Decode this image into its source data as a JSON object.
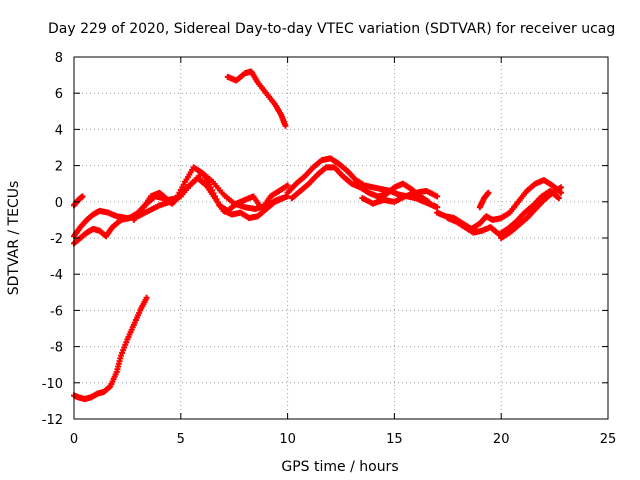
{
  "chart_data": {
    "type": "scatter",
    "title": "Day 229 of 2020, Sidereal Day-to-day VTEC variation (SDTVAR) for receiver ucag",
    "xlabel": "GPS time / hours",
    "ylabel": "SDTVAR / TECUs",
    "xlim": [
      0,
      25
    ],
    "ylim": [
      -12,
      8
    ],
    "x_ticks": [
      0,
      5,
      10,
      15,
      20,
      25
    ],
    "y_ticks": [
      -12,
      -10,
      -8,
      -6,
      -4,
      -2,
      0,
      2,
      4,
      6,
      8
    ],
    "grid": true,
    "legend": "none",
    "marker": "plus",
    "color": "#ff0000",
    "series": [
      {
        "name": "s1",
        "x": [
          0.0,
          0.2,
          0.5,
          0.8,
          1.1,
          1.4,
          1.7,
          2.0,
          2.2,
          2.5,
          2.8,
          3.1,
          3.4
        ],
        "y": [
          -10.7,
          -10.8,
          -10.9,
          -10.8,
          -10.6,
          -10.5,
          -10.2,
          -9.4,
          -8.5,
          -7.6,
          -6.8,
          -6.0,
          -5.3
        ]
      },
      {
        "name": "s2",
        "x": [
          7.2,
          7.6,
          8.0,
          8.3,
          8.6,
          9.0,
          9.4,
          9.7,
          9.9
        ],
        "y": [
          6.9,
          6.7,
          7.1,
          7.2,
          6.6,
          6.0,
          5.4,
          4.8,
          4.2
        ]
      },
      {
        "name": "s3",
        "x": [
          0.0,
          0.2,
          0.4
        ],
        "y": [
          -0.2,
          0.1,
          0.3
        ]
      },
      {
        "name": "s4",
        "x": [
          0.0,
          0.3,
          0.6,
          0.9,
          1.2,
          1.6,
          2.0,
          2.5,
          3.0,
          3.5,
          4.0,
          4.5,
          5.0,
          5.5,
          6.0,
          6.5,
          7.0,
          7.5,
          8.0,
          8.5,
          9.0,
          9.5,
          10.0
        ],
        "y": [
          -1.9,
          -1.4,
          -1.0,
          -0.7,
          -0.5,
          -0.6,
          -0.8,
          -0.9,
          -0.8,
          -0.5,
          -0.2,
          0.0,
          0.3,
          1.0,
          1.6,
          1.1,
          0.4,
          -0.1,
          -0.3,
          -0.4,
          -0.2,
          0.1,
          0.3
        ]
      },
      {
        "name": "s5",
        "x": [
          0.0,
          0.3,
          0.6,
          0.9,
          1.2,
          1.5,
          1.8,
          2.2,
          2.6,
          3.0,
          3.4,
          3.8,
          4.2,
          4.6,
          5.0,
          5.4,
          5.8,
          6.2,
          6.6,
          7.0,
          7.4,
          7.8,
          8.2,
          8.6,
          9.0,
          9.4,
          9.8
        ],
        "y": [
          -2.3,
          -2.0,
          -1.7,
          -1.5,
          -1.6,
          -1.9,
          -1.4,
          -1.0,
          -0.9,
          -0.6,
          -0.1,
          0.3,
          0.2,
          -0.1,
          0.4,
          0.9,
          1.3,
          0.9,
          0.2,
          -0.5,
          -0.7,
          -0.6,
          -0.9,
          -0.8,
          -0.4,
          0.0,
          0.2
        ]
      },
      {
        "name": "s6",
        "x": [
          2.8,
          3.2,
          3.6,
          4.0,
          4.4,
          4.8,
          5.2,
          5.6,
          6.0,
          6.4,
          6.8,
          7.2,
          7.6,
          8.0,
          8.4,
          8.8,
          9.2,
          9.6,
          10.0
        ],
        "y": [
          -1.0,
          -0.4,
          0.3,
          0.5,
          0.1,
          0.2,
          1.1,
          1.9,
          1.6,
          0.8,
          -0.2,
          -0.5,
          -0.1,
          0.1,
          0.3,
          -0.4,
          0.3,
          0.6,
          0.9
        ]
      },
      {
        "name": "s7",
        "x": [
          10.0,
          10.4,
          10.8,
          11.2,
          11.6,
          12.0,
          12.4,
          12.8,
          13.2,
          13.6,
          14.0,
          14.4,
          14.8,
          15.2,
          15.6,
          16.0,
          16.4,
          16.8,
          17.0
        ],
        "y": [
          0.5,
          1.0,
          1.4,
          1.9,
          2.3,
          2.4,
          2.1,
          1.7,
          1.2,
          0.9,
          0.8,
          0.7,
          0.6,
          0.4,
          0.3,
          0.2,
          0.0,
          -0.2,
          -0.3
        ]
      },
      {
        "name": "s8",
        "x": [
          10.2,
          10.6,
          11.0,
          11.4,
          11.8,
          12.2,
          12.6,
          13.0,
          13.4,
          13.8,
          14.2,
          14.6,
          15.0,
          15.4,
          15.8,
          16.2,
          16.6
        ],
        "y": [
          0.2,
          0.6,
          1.0,
          1.5,
          1.9,
          1.9,
          1.4,
          1.0,
          0.8,
          0.5,
          0.3,
          0.4,
          0.8,
          1.0,
          0.7,
          0.3,
          0.0
        ]
      },
      {
        "name": "s9",
        "x": [
          13.5,
          14.0,
          14.5,
          15.0,
          15.5,
          16.0,
          16.5,
          17.0
        ],
        "y": [
          0.2,
          -0.1,
          0.1,
          0.0,
          0.3,
          0.5,
          0.6,
          0.3
        ]
      },
      {
        "name": "s10",
        "x": [
          17.0,
          17.4,
          17.8,
          18.2,
          18.6,
          19.0,
          19.3,
          19.6,
          20.0,
          20.4,
          20.8,
          21.2,
          21.6,
          22.0,
          22.4,
          22.8
        ],
        "y": [
          -0.6,
          -0.8,
          -0.9,
          -1.2,
          -1.5,
          -1.2,
          -0.8,
          -1.0,
          -0.9,
          -0.6,
          0.0,
          0.6,
          1.0,
          1.2,
          0.9,
          0.5
        ]
      },
      {
        "name": "s11",
        "x": [
          17.5,
          17.9,
          18.3,
          18.7,
          19.1,
          19.5,
          19.9,
          20.3,
          20.7,
          21.1,
          21.5,
          21.9,
          22.3,
          22.7
        ],
        "y": [
          -0.9,
          -1.1,
          -1.4,
          -1.7,
          -1.6,
          -1.4,
          -1.8,
          -1.5,
          -1.1,
          -0.6,
          -0.2,
          0.3,
          0.6,
          0.2
        ]
      },
      {
        "name": "s12",
        "x": [
          19.0,
          19.2,
          19.4
        ],
        "y": [
          -0.3,
          0.2,
          0.5
        ]
      },
      {
        "name": "s13",
        "x": [
          20.0,
          20.4,
          20.8,
          21.2,
          21.6,
          22.0,
          22.4,
          22.8
        ],
        "y": [
          -2.0,
          -1.7,
          -1.3,
          -0.9,
          -0.4,
          0.1,
          0.5,
          0.8
        ]
      }
    ]
  }
}
